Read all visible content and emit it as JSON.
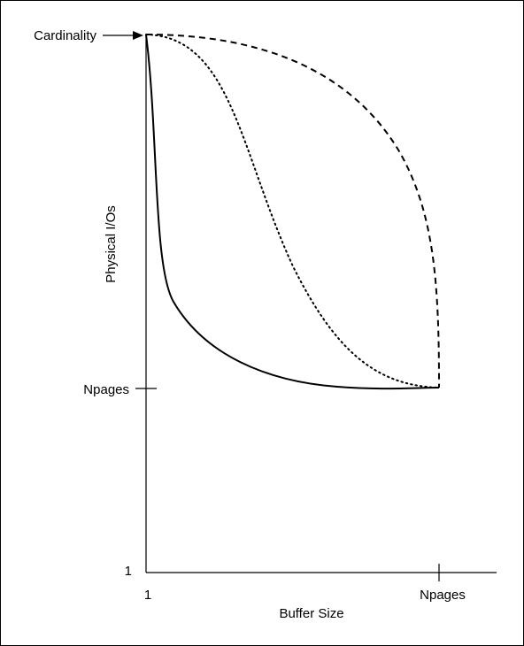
{
  "diagram": {
    "y_axis_label": "Physical I/Os",
    "x_axis_label": "Buffer Size",
    "y_top_label": "Cardinality",
    "y_mid_label": "Npages",
    "y_bottom_label": "1",
    "x_left_label": "1",
    "x_right_label": "Npages",
    "curves": [
      {
        "style": "solid"
      },
      {
        "style": "dotted"
      },
      {
        "style": "dashed"
      }
    ],
    "colors": {
      "stroke": "#000000",
      "background": "#ffffff"
    }
  }
}
